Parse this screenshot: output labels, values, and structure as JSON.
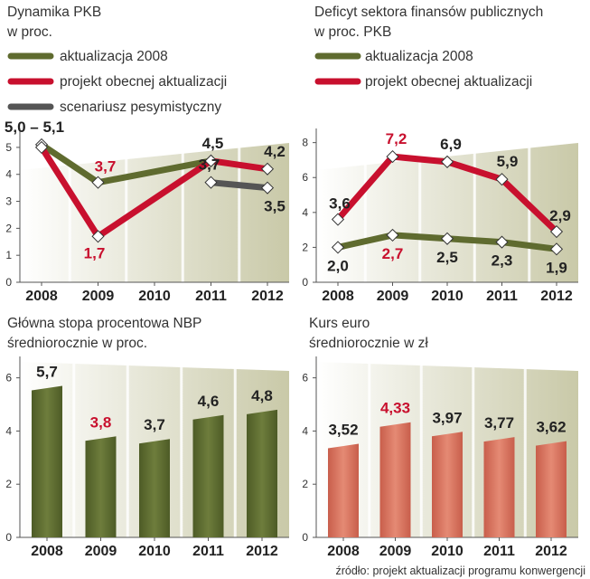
{
  "colors": {
    "olive": "#5f6b2f",
    "red": "#c8102e",
    "gray": "#555555",
    "bar_green": "#5a6a30",
    "bar_salmon": "#d9735f",
    "highlight": "#c8102e"
  },
  "source": "źródło: projekt aktualizacji programu konwergencji",
  "chart_data": [
    {
      "id": "pkb",
      "type": "line",
      "title": [
        "Dynamika PKB",
        "w proc."
      ],
      "categories": [
        "2008",
        "2009",
        "2010",
        "2011",
        "2012"
      ],
      "ylim": [
        0,
        5.5
      ],
      "yticks": [
        "0",
        "1",
        "2",
        "3",
        "4",
        "5"
      ],
      "series": [
        {
          "name": "aktualizacja 2008",
          "color": "olive",
          "x": [
            "2008",
            "2009",
            "2011"
          ],
          "values": [
            5.1,
            3.7,
            4.5
          ]
        },
        {
          "name": "projekt obecnej aktualizacji",
          "color": "red",
          "x": [
            "2008",
            "2009",
            "2011",
            "2012"
          ],
          "values": [
            5.0,
            1.7,
            4.5,
            4.2
          ]
        },
        {
          "name": "scenariusz pesymistyczny",
          "color": "gray",
          "x": [
            "2011",
            "2012"
          ],
          "values": [
            3.7,
            3.5
          ]
        }
      ],
      "labels": [
        {
          "text": "5,0 – 5,1",
          "x": "2008",
          "value": 5.1,
          "highlight": false
        },
        {
          "text": "3,7",
          "x": "2009",
          "value": 3.7,
          "highlight": true
        },
        {
          "text": "1,7",
          "x": "2009",
          "value": 1.7,
          "highlight": true
        },
        {
          "text": "4,5",
          "x": "2011",
          "value": 4.5,
          "highlight": false
        },
        {
          "text": "3,7",
          "x": "2011",
          "value": 3.7,
          "highlight": false
        },
        {
          "text": "4,2",
          "x": "2012",
          "value": 4.2,
          "highlight": false
        },
        {
          "text": "3,5",
          "x": "2012",
          "value": 3.5,
          "highlight": false
        }
      ]
    },
    {
      "id": "deficyt",
      "type": "line",
      "title": [
        "Deficyt sektora finansów publicznych",
        "w proc. PKB"
      ],
      "categories": [
        "2008",
        "2009",
        "2010",
        "2011",
        "2012"
      ],
      "ylim": [
        0,
        8.5
      ],
      "yticks": [
        "0",
        "2",
        "4",
        "6",
        "8"
      ],
      "series": [
        {
          "name": "aktualizacja 2008",
          "color": "olive",
          "x": [
            "2008",
            "2009",
            "2010",
            "2011",
            "2012"
          ],
          "values": [
            2.0,
            2.7,
            2.5,
            2.3,
            1.9
          ]
        },
        {
          "name": "projekt obecnej aktualizacji",
          "color": "red",
          "x": [
            "2008",
            "2009",
            "2010",
            "2011",
            "2012"
          ],
          "values": [
            3.6,
            7.2,
            6.9,
            5.9,
            2.9
          ]
        }
      ],
      "labels": [
        {
          "text": "3,6",
          "x": "2008",
          "value": 3.6,
          "highlight": false
        },
        {
          "text": "7,2",
          "x": "2009",
          "value": 7.2,
          "highlight": true
        },
        {
          "text": "6,9",
          "x": "2010",
          "value": 6.9,
          "highlight": false
        },
        {
          "text": "5,9",
          "x": "2011",
          "value": 5.9,
          "highlight": false
        },
        {
          "text": "2,9",
          "x": "2012",
          "value": 2.9,
          "highlight": false
        },
        {
          "text": "2,0",
          "x": "2008",
          "value": 2.0,
          "highlight": false
        },
        {
          "text": "2,7",
          "x": "2009",
          "value": 2.7,
          "highlight": true
        },
        {
          "text": "2,5",
          "x": "2010",
          "value": 2.5,
          "highlight": false
        },
        {
          "text": "2,3",
          "x": "2011",
          "value": 2.3,
          "highlight": false
        },
        {
          "text": "1,9",
          "x": "2012",
          "value": 1.9,
          "highlight": false
        }
      ]
    },
    {
      "id": "stopa",
      "type": "bar",
      "title": [
        "Główna stopa procentowa NBP",
        "średniorocznie w proc."
      ],
      "categories": [
        "2008",
        "2009",
        "2010",
        "2011",
        "2012"
      ],
      "values": [
        5.7,
        3.8,
        3.7,
        4.6,
        4.8
      ],
      "value_labels": [
        "5,7",
        "3,8",
        "3,7",
        "4,6",
        "4,8"
      ],
      "highlight_index": 1,
      "color": "bar_green",
      "ylim": [
        0,
        6.6
      ],
      "yticks": [
        "0",
        "2",
        "4",
        "6"
      ]
    },
    {
      "id": "euro",
      "type": "bar",
      "title": [
        "Kurs euro",
        "średniorocznie w zł"
      ],
      "categories": [
        "2008",
        "2009",
        "2010",
        "2011",
        "2012"
      ],
      "values": [
        3.52,
        4.33,
        3.97,
        3.77,
        3.62
      ],
      "value_labels": [
        "3,52",
        "4,33",
        "3,97",
        "3,77",
        "3,62"
      ],
      "highlight_index": 1,
      "color": "bar_salmon",
      "ylim": [
        0,
        6.6
      ],
      "yticks": [
        "0",
        "2",
        "4",
        "6"
      ]
    }
  ]
}
